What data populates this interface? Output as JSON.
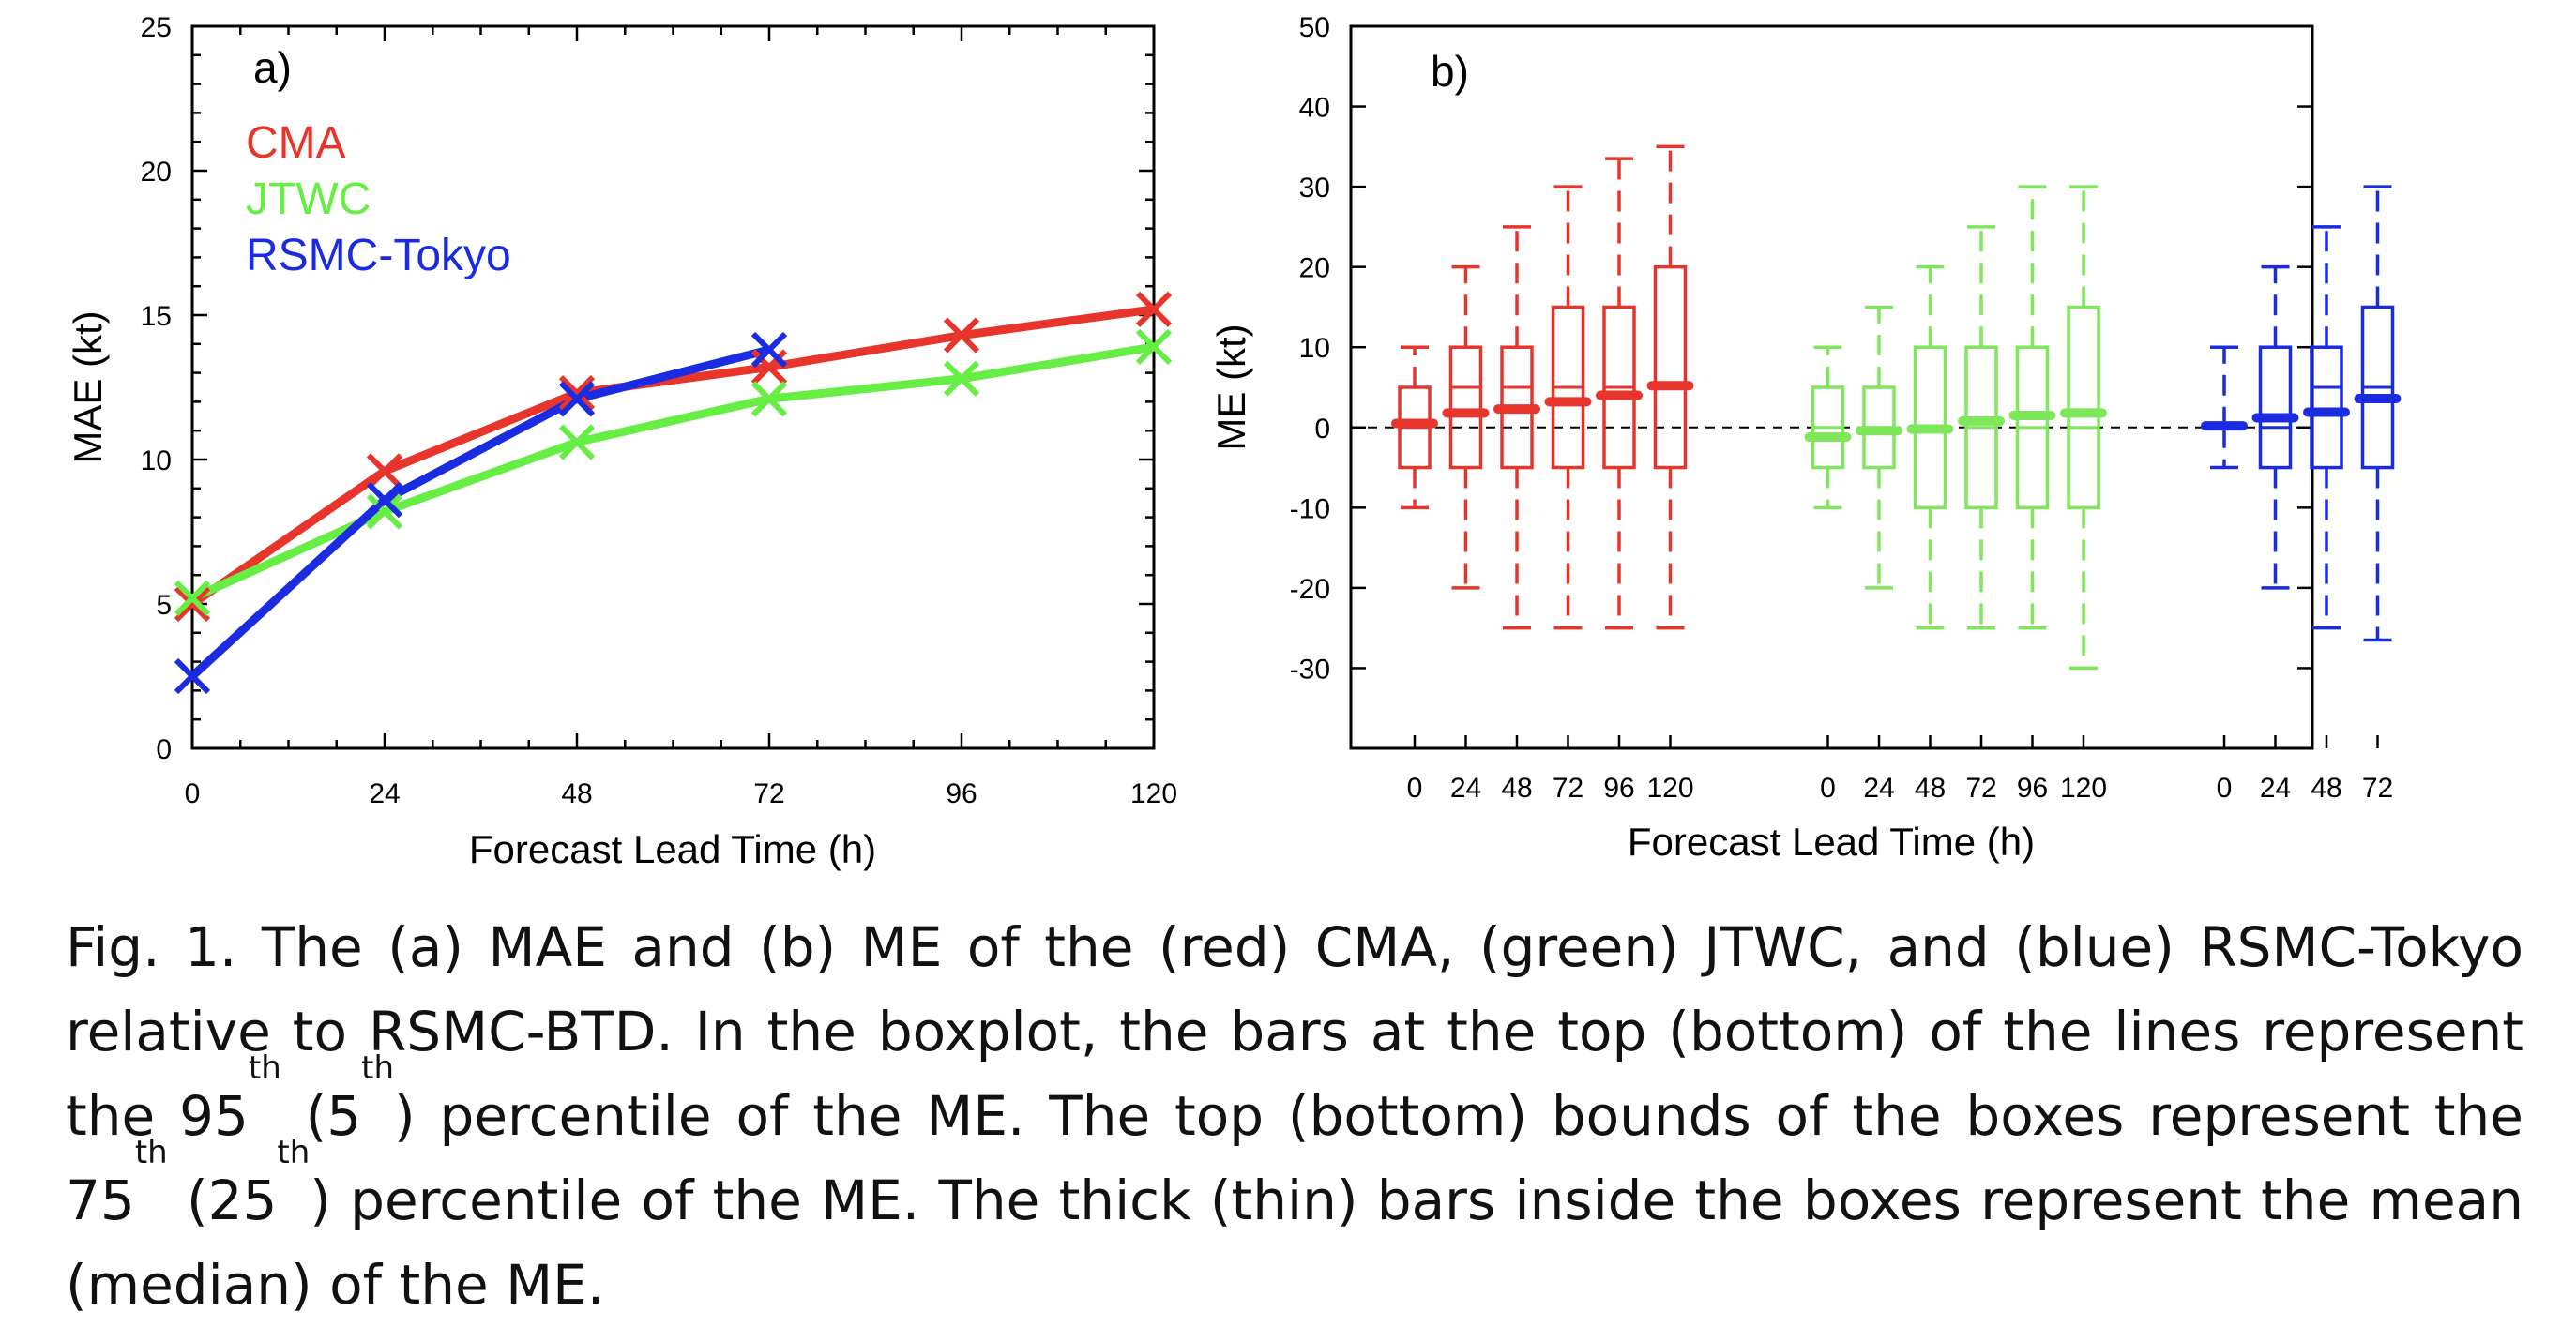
{
  "chart_data": [
    {
      "type": "line",
      "panel_label": "a)",
      "xlabel": "Forecast Lead Time (h)",
      "ylabel": "MAE (kt)",
      "xlim": [
        0,
        120
      ],
      "ylim": [
        0,
        25
      ],
      "x_ticks": [
        0,
        24,
        48,
        72,
        96,
        120
      ],
      "y_ticks": [
        0,
        5,
        10,
        15,
        20,
        25
      ],
      "legend_position": "top-left",
      "grid": false,
      "series": [
        {
          "name": "CMA",
          "color": "#e8352c",
          "x": [
            0,
            24,
            48,
            72,
            96,
            120
          ],
          "y": [
            5.0,
            9.6,
            12.3,
            13.2,
            14.3,
            15.2
          ]
        },
        {
          "name": "JTWC",
          "color": "#66ee44",
          "x": [
            0,
            24,
            48,
            72,
            96,
            120
          ],
          "y": [
            5.2,
            8.2,
            10.6,
            12.1,
            12.8,
            13.9
          ]
        },
        {
          "name": "RSMC-Tokyo",
          "color": "#1a2be0",
          "x": [
            0,
            24,
            48,
            72
          ],
          "y": [
            2.5,
            8.6,
            12.1,
            13.8
          ]
        }
      ]
    },
    {
      "type": "box",
      "panel_label": "b)",
      "xlabel": "Forecast Lead Time (h)",
      "ylabel": "ME (kt)",
      "ylim": [
        -40,
        50
      ],
      "y_ticks": [
        -30,
        -20,
        -10,
        0,
        10,
        20,
        30,
        40,
        50
      ],
      "zero_reference_line": true,
      "grid": false,
      "groups": [
        {
          "color": "#e8352c",
          "categories": [
            "0",
            "24",
            "48",
            "72",
            "96",
            "120"
          ],
          "p5": [
            -10,
            -20,
            -25,
            -25,
            -25,
            -25
          ],
          "q1": [
            -5,
            -5,
            -5,
            -5,
            -5,
            -5
          ],
          "median": [
            0,
            5,
            5,
            5,
            5,
            5
          ],
          "q3": [
            5,
            10,
            10,
            15,
            15,
            20
          ],
          "p95": [
            10,
            20,
            25,
            30,
            33.5,
            35
          ],
          "mean": [
            0.5,
            1.8,
            2.3,
            3.2,
            4.0,
            5.2
          ]
        },
        {
          "color": "#7ee85a",
          "categories": [
            "0",
            "24",
            "48",
            "72",
            "96",
            "120"
          ],
          "p5": [
            -10,
            -20,
            -25,
            -25,
            -25,
            -30
          ],
          "q1": [
            -5,
            -5,
            -10,
            -10,
            -10,
            -10
          ],
          "median": [
            0,
            0,
            0,
            0,
            0,
            0
          ],
          "q3": [
            5,
            5,
            10,
            10,
            10,
            15
          ],
          "p95": [
            10,
            15,
            20,
            25,
            30,
            30
          ],
          "mean": [
            -1.2,
            -0.4,
            -0.2,
            0.8,
            1.5,
            1.8
          ]
        },
        {
          "color": "#1a2be0",
          "categories": [
            "0",
            "24",
            "48",
            "72"
          ],
          "p5": [
            -5,
            -20,
            -25,
            -26.5
          ],
          "q1": [
            0,
            -5,
            -5,
            -5
          ],
          "median": [
            0,
            0,
            5,
            5
          ],
          "q3": [
            0,
            10,
            10,
            15
          ],
          "p95": [
            10,
            20,
            25,
            30
          ],
          "mean": [
            0.2,
            1.2,
            1.9,
            3.6
          ]
        }
      ]
    }
  ],
  "caption": {
    "p1": "Fig. 1. The (a) MAE and (b) ME of the (red) CMA, (green) JTWC, and (blue) RSMC-Tokyo relative to RSMC-BTD. In the boxplot, the bars at the top (bottom) of the lines represent the 95",
    "sup1": "th",
    "p2": " (5",
    "sup2": "th",
    "p3": ") percentile of the ME. The top (bottom) bounds of the boxes represent the 75",
    "sup3": "th",
    "p4": " (25",
    "sup4": "th",
    "p5": ") percentile of the ME. The thick (thin) bars inside the boxes represent the mean (median) of the ME."
  }
}
